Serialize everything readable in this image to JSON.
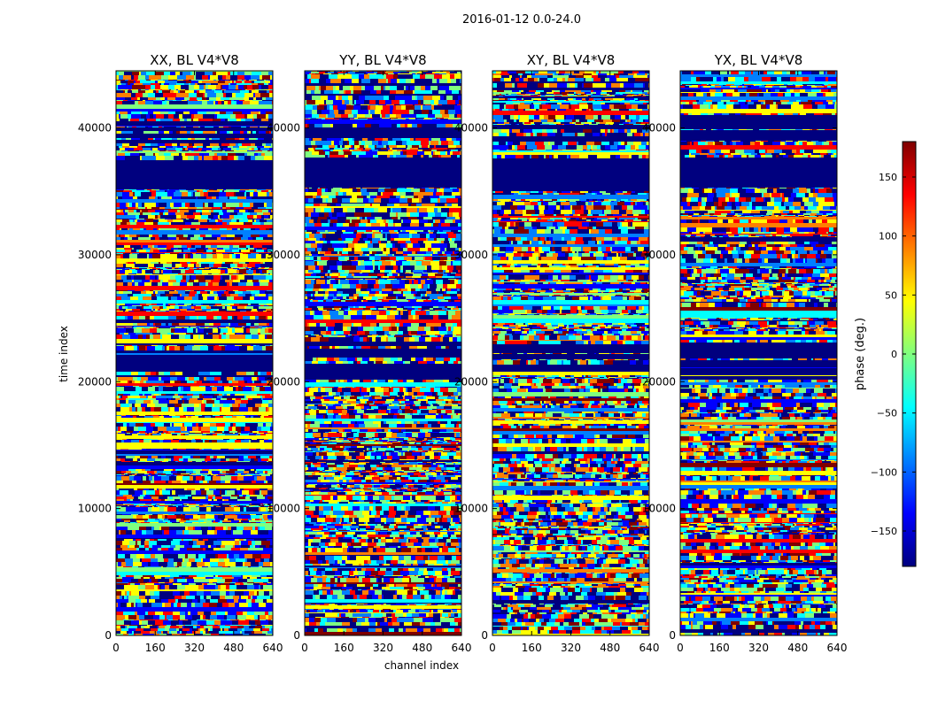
{
  "figure": {
    "suptitle": "2016-01-12 0.0-24.0"
  },
  "chart_data": [
    {
      "type": "heatmap",
      "title": "XX, BL V4*V8",
      "xlabel": "",
      "ylabel": "time index",
      "xlim": [
        0,
        640
      ],
      "ylim": [
        0,
        44500
      ],
      "x_ticks": [
        0,
        160,
        320,
        480,
        640
      ],
      "y_ticks": [
        0,
        10000,
        20000,
        30000,
        40000
      ],
      "x_tick_labels": [
        "0",
        "160",
        "320",
        "480",
        "640"
      ],
      "y_tick_labels": [
        "0",
        "10000",
        "20000",
        "30000",
        "40000"
      ]
    },
    {
      "type": "heatmap",
      "title": "YY, BL V4*V8",
      "xlabel": "channel index",
      "ylabel": "",
      "xlim": [
        0,
        640
      ],
      "ylim": [
        0,
        44500
      ],
      "x_ticks": [
        0,
        160,
        320,
        480,
        640
      ],
      "y_ticks": [
        0,
        10000,
        20000,
        30000,
        40000
      ],
      "x_tick_labels": [
        "0",
        "160",
        "320",
        "480",
        "640"
      ],
      "y_tick_labels": [
        "0",
        "10000",
        "20000",
        "30000",
        "40000"
      ]
    },
    {
      "type": "heatmap",
      "title": "XY, BL V4*V8",
      "xlabel": "",
      "ylabel": "",
      "xlim": [
        0,
        640
      ],
      "ylim": [
        0,
        44500
      ],
      "x_ticks": [
        0,
        160,
        320,
        480,
        640
      ],
      "y_ticks": [
        0,
        10000,
        20000,
        30000,
        40000
      ],
      "x_tick_labels": [
        "0",
        "160",
        "320",
        "480",
        "640"
      ],
      "y_tick_labels": [
        "0",
        "10000",
        "20000",
        "30000",
        "40000"
      ]
    },
    {
      "type": "heatmap",
      "title": "YX, BL V4*V8",
      "xlabel": "",
      "ylabel": "",
      "xlim": [
        0,
        640
      ],
      "ylim": [
        0,
        44500
      ],
      "x_ticks": [
        0,
        160,
        320,
        480,
        640
      ],
      "y_ticks": [
        0,
        10000,
        20000,
        30000,
        40000
      ],
      "x_tick_labels": [
        "0",
        "160",
        "320",
        "480",
        "640"
      ],
      "y_tick_labels": [
        "0",
        "10000",
        "20000",
        "30000",
        "40000"
      ]
    }
  ],
  "colorbar": {
    "label": "phase (deg.)",
    "range": [
      -180,
      180
    ],
    "ticks": [
      -150,
      -100,
      -50,
      0,
      50,
      100,
      150
    ],
    "tick_labels": [
      "−150",
      "−100",
      "−50",
      "0",
      "50",
      "100",
      "150"
    ],
    "colormap_stops": [
      "#00007f",
      "#0000ff",
      "#007fff",
      "#00ffff",
      "#7fff7f",
      "#ffff00",
      "#ff7f00",
      "#ff0000",
      "#7f0000"
    ]
  }
}
